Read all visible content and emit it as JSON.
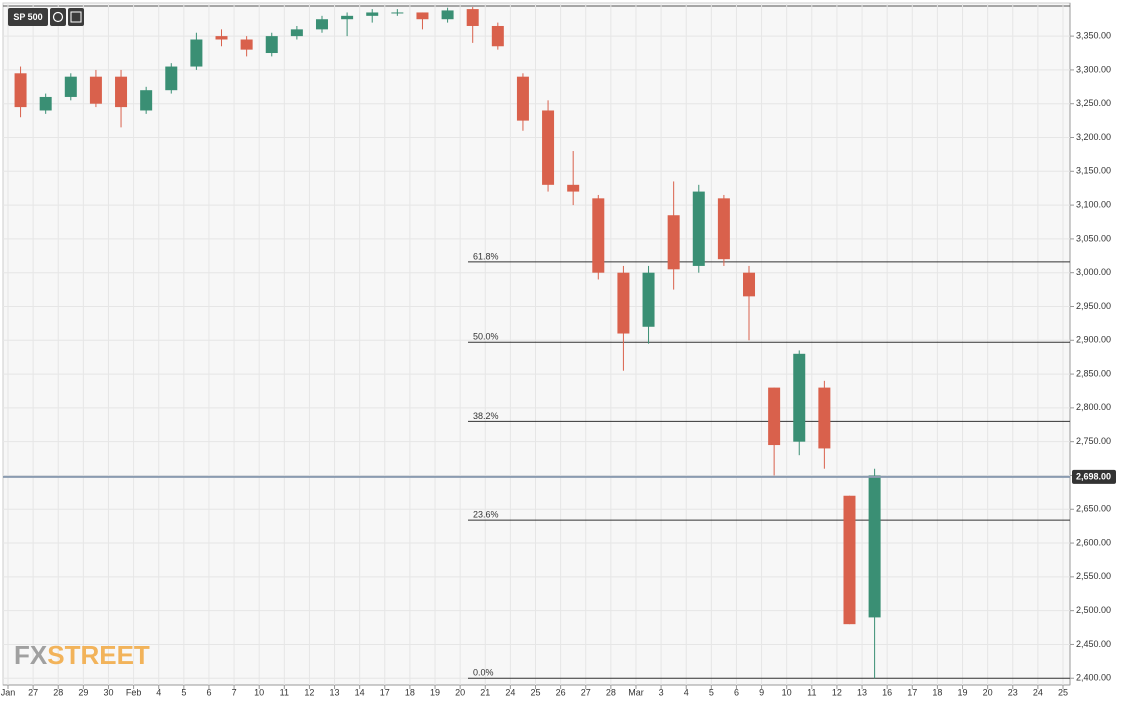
{
  "chart_data": {
    "type": "candlestick",
    "title": "SP 500",
    "watermark": {
      "fx": "FX",
      "street": "STREET"
    },
    "categories": [
      "Jan",
      "27",
      "28",
      "29",
      "30",
      "Feb",
      "4",
      "5",
      "6",
      "7",
      "10",
      "11",
      "12",
      "13",
      "14",
      "17",
      "18",
      "19",
      "20",
      "21",
      "24",
      "25",
      "26",
      "27",
      "28",
      "Mar",
      "3",
      "4",
      "5",
      "6",
      "9",
      "10",
      "11",
      "12",
      "13",
      "16",
      "17",
      "18",
      "19",
      "20",
      "23",
      "24",
      "25"
    ],
    "open": [
      3295,
      3240,
      3260,
      3290,
      3290,
      3240,
      3270,
      3305,
      3350,
      3345,
      3325,
      3350,
      3360,
      3375,
      3380,
      3385,
      3385,
      3375,
      3390,
      3365,
      3290,
      3240,
      3130,
      3110,
      3000,
      2920,
      3085,
      3010,
      3110,
      3000,
      2830,
      2750,
      2830,
      2670,
      2490,
      null,
      null,
      null,
      null,
      null,
      null,
      null,
      null
    ],
    "high": [
      3305,
      3265,
      3295,
      3300,
      3300,
      3275,
      3310,
      3355,
      3360,
      3350,
      3355,
      3365,
      3380,
      3385,
      3390,
      3390,
      3385,
      3392,
      3393,
      3370,
      3295,
      3255,
      3180,
      3115,
      3010,
      3010,
      3135,
      3130,
      3115,
      3010,
      2830,
      2885,
      2840,
      2670,
      2710,
      null,
      null,
      null,
      null,
      null,
      null,
      null,
      null
    ],
    "low": [
      3230,
      3235,
      3255,
      3245,
      3215,
      3235,
      3265,
      3300,
      3335,
      3320,
      3320,
      3345,
      3355,
      3350,
      3370,
      3380,
      3360,
      3370,
      3340,
      3330,
      3210,
      3120,
      3100,
      2990,
      2855,
      2895,
      2975,
      3000,
      3010,
      2900,
      2700,
      2730,
      2710,
      2480,
      2400,
      null,
      null,
      null,
      null,
      null,
      null,
      null,
      null
    ],
    "close": [
      3245,
      3260,
      3290,
      3250,
      3245,
      3270,
      3305,
      3345,
      3345,
      3330,
      3350,
      3360,
      3375,
      3380,
      3385,
      3385,
      3375,
      3388,
      3365,
      3335,
      3225,
      3130,
      3120,
      3000,
      2910,
      3000,
      3005,
      3120,
      3020,
      2965,
      2745,
      2880,
      2740,
      2480,
      2700,
      null,
      null,
      null,
      null,
      null,
      null,
      null,
      null
    ],
    "up_color": "#3a8f74",
    "down_color": "#d9614c",
    "ylim": [
      2390,
      3399
    ],
    "yticks": [
      {
        "value": 2400,
        "label": "2,400.00"
      },
      {
        "value": 2450,
        "label": "2,450.00"
      },
      {
        "value": 2500,
        "label": "2,500.00"
      },
      {
        "value": 2550,
        "label": "2,550.00"
      },
      {
        "value": 2600,
        "label": "2,600.00"
      },
      {
        "value": 2650,
        "label": "2,650.00"
      },
      {
        "value": 2700,
        "label": "2,700.00"
      },
      {
        "value": 2750,
        "label": "2,750.00"
      },
      {
        "value": 2800,
        "label": "2,800.00"
      },
      {
        "value": 2850,
        "label": "2,850.00"
      },
      {
        "value": 2900,
        "label": "2,900.00"
      },
      {
        "value": 2950,
        "label": "2,950.00"
      },
      {
        "value": 3000,
        "label": "3,000.00"
      },
      {
        "value": 3050,
        "label": "3,050.00"
      },
      {
        "value": 3100,
        "label": "3,100.00"
      },
      {
        "value": 3150,
        "label": "3,150.00"
      },
      {
        "value": 3200,
        "label": "3,200.00"
      },
      {
        "value": 3250,
        "label": "3,250.00"
      },
      {
        "value": 3300,
        "label": "3,300.00"
      },
      {
        "value": 3350,
        "label": "3,350.00"
      }
    ],
    "grid": true,
    "levels": [
      {
        "label": "61.8%",
        "value": 3016
      },
      {
        "label": "50.0%",
        "value": 2897
      },
      {
        "label": "38.2%",
        "value": 2780
      },
      {
        "label": "23.6%",
        "value": 2634
      },
      {
        "label": "0.0%",
        "value": 2400
      }
    ],
    "last_price": {
      "value": 2698,
      "label": "2,698.00"
    }
  }
}
